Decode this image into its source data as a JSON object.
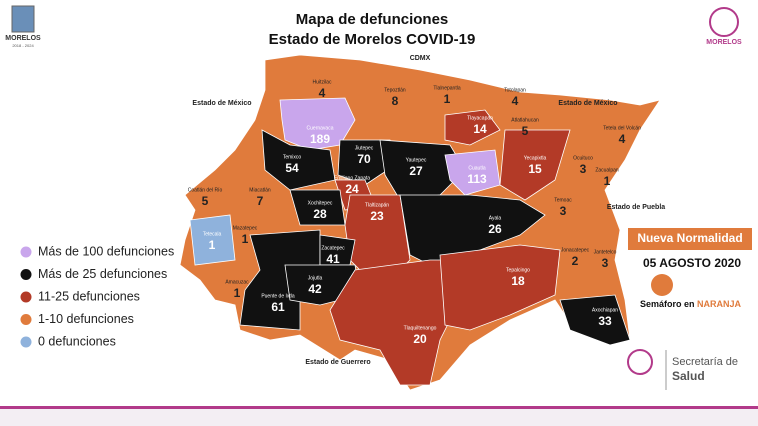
{
  "header": {
    "title": "Mapa de defunciones",
    "subtitle": "Estado de Morelos COVID-19",
    "logo_left": "MORELOS",
    "logo_left_years": "2018 - 2024",
    "logo_right": "MORELOS"
  },
  "neighbors": [
    "CDMX",
    "Estado de México",
    "Estado de México",
    "Estado de Puebla",
    "Estado de Guerrero"
  ],
  "municipalities": [
    {
      "name": "Huitzilac",
      "value": "4"
    },
    {
      "name": "Tepoztlán",
      "value": "8"
    },
    {
      "name": "Tlalnepantla",
      "value": "1"
    },
    {
      "name": "Totolapan",
      "value": "4"
    },
    {
      "name": "Tlayacapan",
      "value": "14"
    },
    {
      "name": "Atlatlahucan",
      "value": "5"
    },
    {
      "name": "Cuernavaca",
      "value": "189"
    },
    {
      "name": "Jiutepec",
      "value": "70"
    },
    {
      "name": "Temixco",
      "value": "54"
    },
    {
      "name": "Yautepec",
      "value": "27"
    },
    {
      "name": "Cuautla",
      "value": "113"
    },
    {
      "name": "Yecapixtla",
      "value": "15"
    },
    {
      "name": "Ocuituco",
      "value": "3"
    },
    {
      "name": "Tetela del Volcán",
      "value": "4"
    },
    {
      "name": "Emiliano Zapata",
      "value": "24"
    },
    {
      "name": "Xochitepec",
      "value": "28"
    },
    {
      "name": "Miacatlán",
      "value": "7"
    },
    {
      "name": "Coatlán del Río",
      "value": "5"
    },
    {
      "name": "Tetecala",
      "value": "1"
    },
    {
      "name": "Mazatepec",
      "value": "1"
    },
    {
      "name": "Tlaltizapán",
      "value": "23"
    },
    {
      "name": "Ayala",
      "value": "26"
    },
    {
      "name": "Temoac",
      "value": "3"
    },
    {
      "name": "Zacualpan",
      "value": "1"
    },
    {
      "name": "Jantetelco",
      "value": "3"
    },
    {
      "name": "Jonacatepec",
      "value": "2"
    },
    {
      "name": "Amacuzac",
      "value": "1"
    },
    {
      "name": "Puente de Ixtla",
      "value": "61"
    },
    {
      "name": "Zacatepec",
      "value": "41"
    },
    {
      "name": "Jojutla",
      "value": "42"
    },
    {
      "name": "Tlaquiltenango",
      "value": "20"
    },
    {
      "name": "Tepalcingo",
      "value": "18"
    },
    {
      "name": "Axochiapan",
      "value": "33"
    }
  ],
  "legend": [
    {
      "label": "Más de 100 defunciones",
      "color": "#c9a6ec"
    },
    {
      "label": "Más de 25 defunciones",
      "color": "#111111"
    },
    {
      "label": "11-25 defunciones",
      "color": "#b33a27"
    },
    {
      "label": "1-10 defunciones",
      "color": "#e07b3c"
    },
    {
      "label": "0 defunciones",
      "color": "#8fb2dc"
    }
  ],
  "status": {
    "badge": "Nueva Normalidad",
    "date": "05 AGOSTO 2020",
    "semaforo": "Semáforo en",
    "semaforo_color": "NARANJA"
  },
  "footer": {
    "org_line1": "Secretaría de",
    "org_line2": "Salud"
  }
}
